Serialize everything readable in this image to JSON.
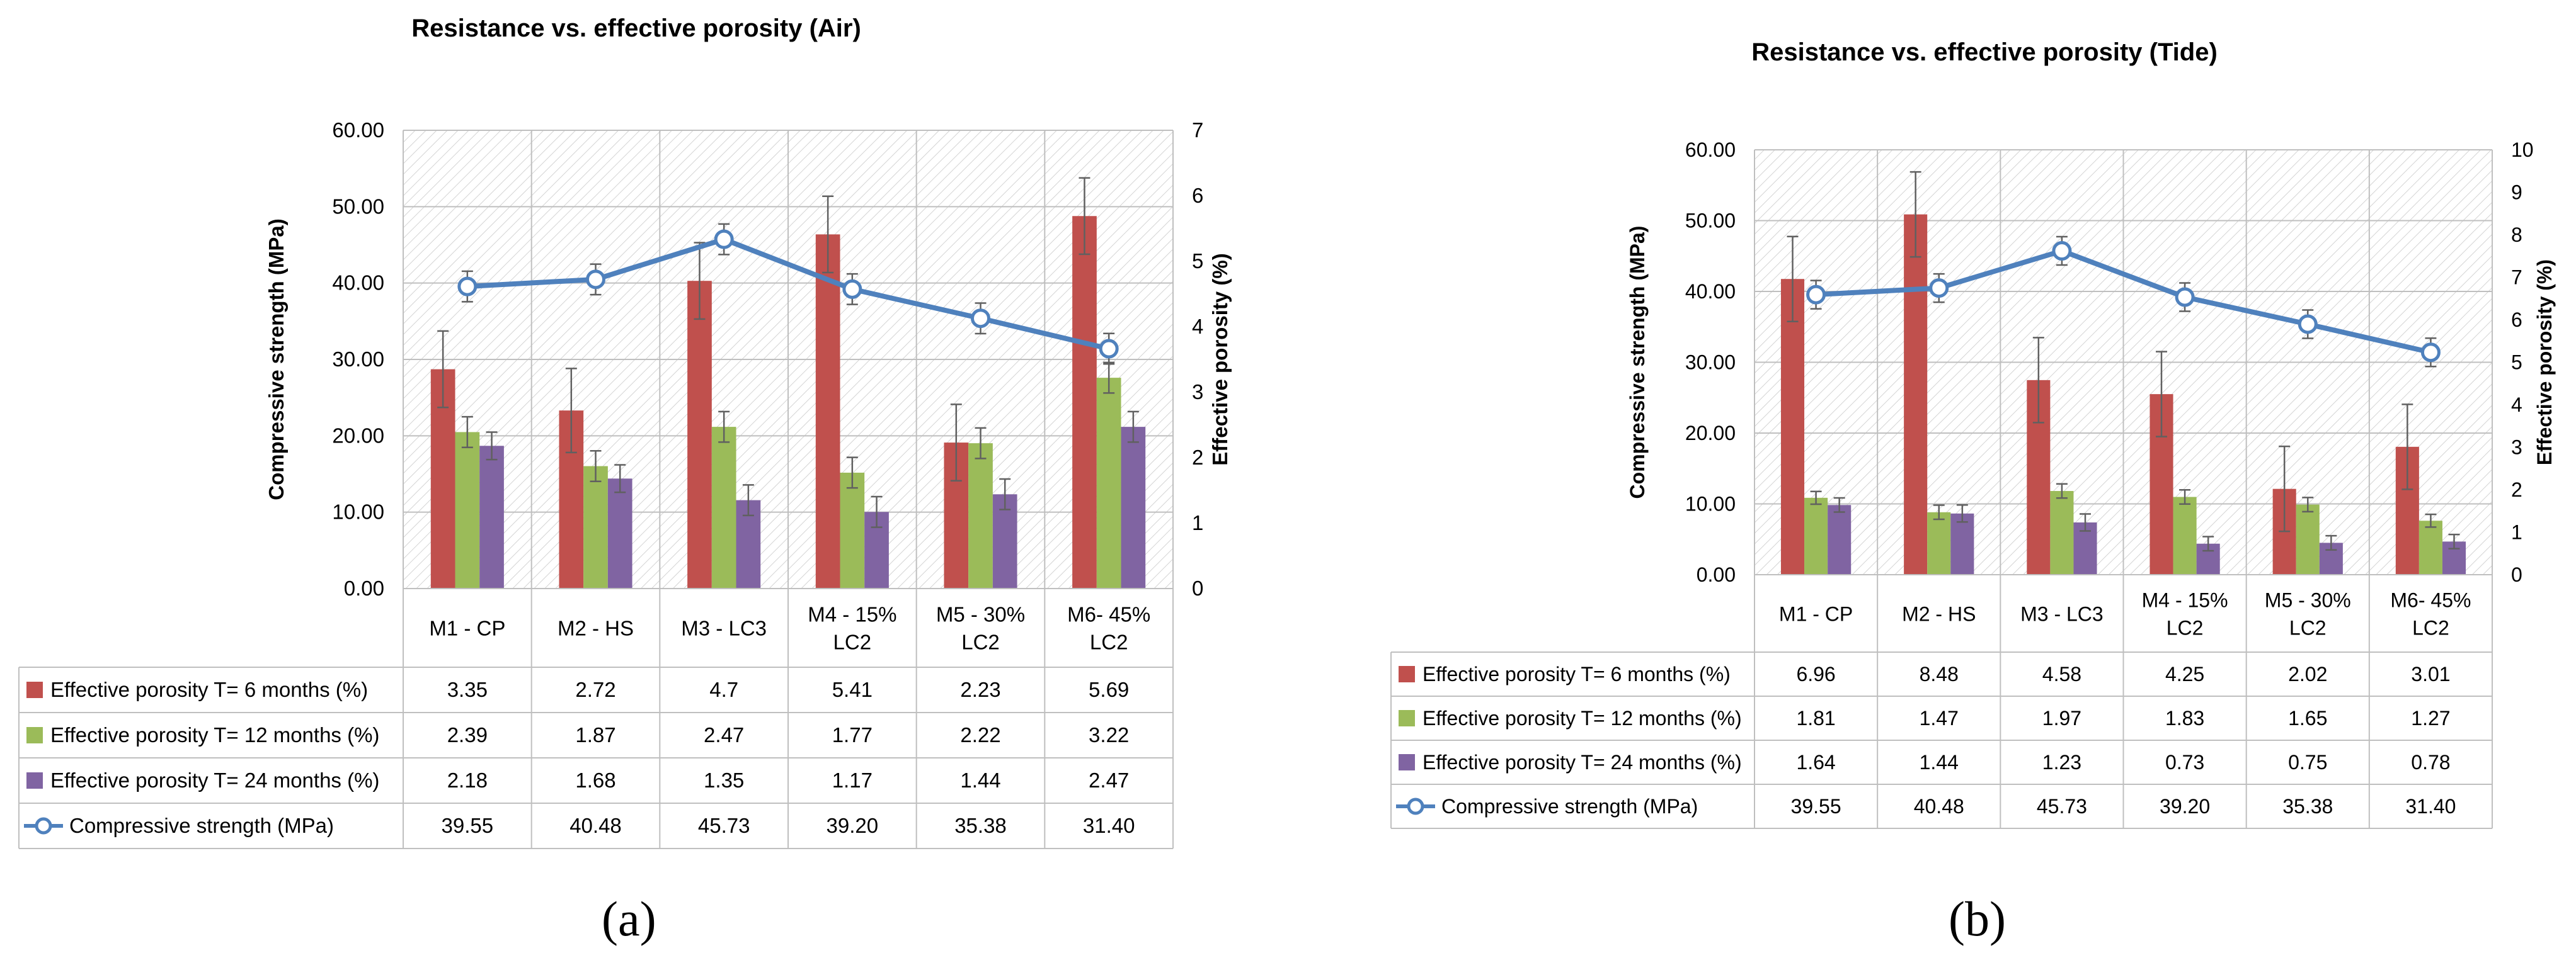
{
  "chart_data": [
    {
      "type": "bar",
      "panel": "(a)",
      "title": "Resistance vs. effective porosity (Air)",
      "categories": [
        "M1 - CP",
        "M2 - HS",
        "M3 - LC3",
        "M4 - 15% LC2",
        "M5 - 30% LC2",
        "M6- 45% LC2"
      ],
      "ylabel": "Compressive strength (MPa)",
      "y2label": "Effective porosity (%)",
      "ylim": [
        0,
        60
      ],
      "yticks": [
        "0.00",
        "10.00",
        "20.00",
        "30.00",
        "40.00",
        "50.00",
        "60.00"
      ],
      "y2lim": [
        0,
        7
      ],
      "y2ticks": [
        "0",
        "1",
        "2",
        "3",
        "4",
        "5",
        "6",
        "7"
      ],
      "series": [
        {
          "name": "Effective porosity T= 6 months (%)",
          "kind": "bar",
          "color": "#c0504d",
          "values": [
            3.35,
            2.72,
            4.7,
            5.41,
            2.23,
            5.69
          ],
          "labels": [
            "3.35",
            "2.72",
            "4.7",
            "5.41",
            "2.23",
            "5.69"
          ]
        },
        {
          "name": "Effective porosity T= 12 months (%)",
          "kind": "bar",
          "color": "#9bbb59",
          "values": [
            2.39,
            1.87,
            2.47,
            1.77,
            2.22,
            3.22
          ],
          "labels": [
            "2.39",
            "1.87",
            "2.47",
            "1.77",
            "2.22",
            "3.22"
          ]
        },
        {
          "name": "Effective porosity T= 24 months (%)",
          "kind": "bar",
          "color": "#8064a2",
          "values": [
            2.18,
            1.68,
            1.35,
            1.17,
            1.44,
            2.47
          ],
          "labels": [
            "2.18",
            "1.68",
            "1.35",
            "1.17",
            "1.44",
            "2.47"
          ]
        },
        {
          "name": "Compressive strength (MPa)",
          "kind": "line",
          "color": "#4f81bd",
          "values": [
            39.55,
            40.48,
            45.73,
            39.2,
            35.38,
            31.4
          ],
          "labels": [
            "39.55",
            "40.48",
            "45.73",
            "39.20",
            "35.38",
            "31.40"
          ]
        }
      ]
    },
    {
      "type": "bar",
      "panel": "(b)",
      "title": "Resistance vs. effective porosity (Tide)",
      "categories": [
        "M1 - CP",
        "M2 - HS",
        "M3 - LC3",
        "M4 - 15% LC2",
        "M5 - 30% LC2",
        "M6- 45% LC2"
      ],
      "ylabel": "Compressive strength (MPa)",
      "y2label": "Effective porosity (%)",
      "ylim": [
        0,
        60
      ],
      "yticks": [
        "0.00",
        "10.00",
        "20.00",
        "30.00",
        "40.00",
        "50.00",
        "60.00"
      ],
      "y2lim": [
        0,
        10
      ],
      "y2ticks": [
        "0",
        "1",
        "2",
        "3",
        "4",
        "5",
        "6",
        "7",
        "8",
        "9",
        "10"
      ],
      "series": [
        {
          "name": "Effective porosity T= 6 months (%)",
          "kind": "bar",
          "color": "#c0504d",
          "values": [
            6.96,
            8.48,
            4.58,
            4.25,
            2.02,
            3.01
          ],
          "labels": [
            "6.96",
            "8.48",
            "4.58",
            "4.25",
            "2.02",
            "3.01"
          ]
        },
        {
          "name": "Effective porosity T= 12 months (%)",
          "kind": "bar",
          "color": "#9bbb59",
          "values": [
            1.81,
            1.47,
            1.97,
            1.83,
            1.65,
            1.27
          ],
          "labels": [
            "1.81",
            "1.47",
            "1.97",
            "1.83",
            "1.65",
            "1.27"
          ]
        },
        {
          "name": "Effective porosity T= 24 months (%)",
          "kind": "bar",
          "color": "#8064a2",
          "values": [
            1.64,
            1.44,
            1.23,
            0.73,
            0.75,
            0.78
          ],
          "labels": [
            "1.64",
            "1.44",
            "1.23",
            "0.73",
            "0.75",
            "0.78"
          ]
        },
        {
          "name": "Compressive strength (MPa)",
          "kind": "line",
          "color": "#4f81bd",
          "values": [
            39.55,
            40.48,
            45.73,
            39.2,
            35.38,
            31.4
          ],
          "labels": [
            "39.55",
            "40.48",
            "45.73",
            "39.20",
            "35.38",
            "31.40"
          ]
        }
      ]
    }
  ]
}
